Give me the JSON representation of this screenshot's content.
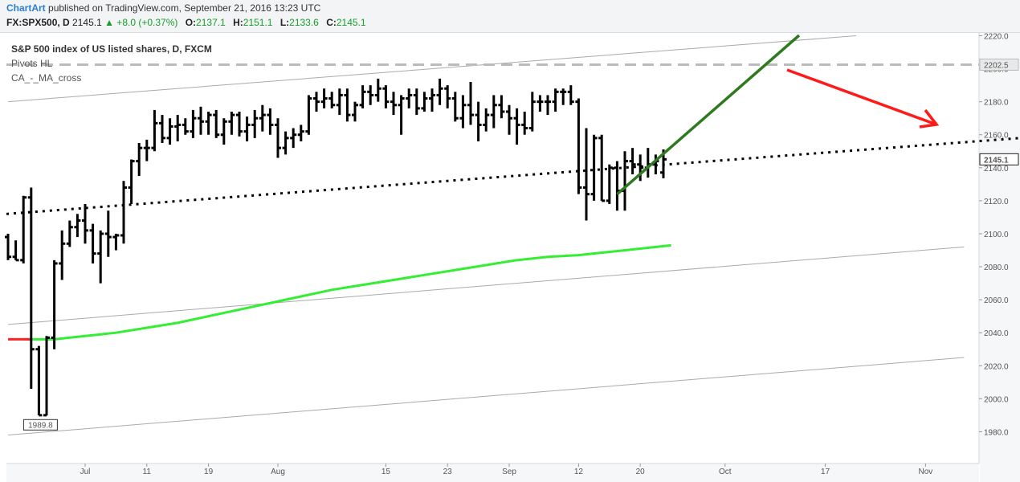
{
  "header": {
    "brand": "ChartArt",
    "published": "published on TradingView.com, September 21, 2016 13:23 UTC",
    "symbol": "FX:SPX500, D",
    "last": "2145.1",
    "change": "▲ +8.0 (+0.37%)",
    "o_label": "O:",
    "o_value": "2137.1",
    "h_label": "H:",
    "h_value": "2151.1",
    "l_label": "L:",
    "l_value": "2133.6",
    "c_label": "C:",
    "c_value": "2145.1"
  },
  "legend": {
    "title": "S&P 500 index of US listed shares, D, FXCM",
    "line2": "Pivots HL",
    "line3": "CA_-_MA_cross"
  },
  "chart_data": {
    "type": "ohlc",
    "price_axis": {
      "min": 1960,
      "max": 2220,
      "ticks": [
        1980,
        2000,
        2020,
        2040,
        2060,
        2080,
        2100,
        2120,
        2140,
        2160,
        2180,
        2200,
        2220
      ]
    },
    "x_labels": [
      {
        "label": "Jul",
        "index": 10
      },
      {
        "label": "11",
        "index": 18
      },
      {
        "label": "19",
        "index": 26
      },
      {
        "label": "Aug",
        "index": 35
      },
      {
        "label": "15",
        "index": 49
      },
      {
        "label": "23",
        "index": 57
      },
      {
        "label": "Sep",
        "index": 65
      },
      {
        "label": "12",
        "index": 74
      },
      {
        "label": "20",
        "index": 82
      },
      {
        "label": "Oct",
        "index": 93
      },
      {
        "label": "17",
        "index": 106
      },
      {
        "label": "Nov",
        "index": 119
      }
    ],
    "bars": [
      {
        "o": 2098,
        "h": 2100,
        "l": 2084,
        "c": 2086
      },
      {
        "o": 2086,
        "h": 2096,
        "l": 2084,
        "c": 2084
      },
      {
        "o": 2084,
        "h": 2123,
        "l": 2082,
        "c": 2122
      },
      {
        "o": 2122,
        "h": 2128,
        "l": 2006,
        "c": 2030
      },
      {
        "o": 2030,
        "h": 2032,
        "l": 1990,
        "c": 1990
      },
      {
        "o": 1990,
        "h": 2038,
        "l": 1989.8,
        "c": 2037
      },
      {
        "o": 2037,
        "h": 2084,
        "l": 2030,
        "c": 2082
      },
      {
        "o": 2082,
        "h": 2102,
        "l": 2072,
        "c": 2094
      },
      {
        "o": 2094,
        "h": 2108,
        "l": 2092,
        "c": 2104
      },
      {
        "o": 2104,
        "h": 2112,
        "l": 2098,
        "c": 2108
      },
      {
        "o": 2108,
        "h": 2118,
        "l": 2094,
        "c": 2102
      },
      {
        "o": 2102,
        "h": 2106,
        "l": 2082,
        "c": 2088
      },
      {
        "o": 2088,
        "h": 2102,
        "l": 2070,
        "c": 2100
      },
      {
        "o": 2100,
        "h": 2114,
        "l": 2086,
        "c": 2098
      },
      {
        "o": 2098,
        "h": 2100,
        "l": 2090,
        "c": 2099
      },
      {
        "o": 2099,
        "h": 2132,
        "l": 2094,
        "c": 2128
      },
      {
        "o": 2128,
        "h": 2145,
        "l": 2118,
        "c": 2144
      },
      {
        "o": 2144,
        "h": 2155,
        "l": 2135,
        "c": 2152
      },
      {
        "o": 2152,
        "h": 2157,
        "l": 2144,
        "c": 2152
      },
      {
        "o": 2152,
        "h": 2175,
        "l": 2150,
        "c": 2167
      },
      {
        "o": 2167,
        "h": 2172,
        "l": 2155,
        "c": 2158
      },
      {
        "o": 2158,
        "h": 2170,
        "l": 2154,
        "c": 2165
      },
      {
        "o": 2165,
        "h": 2172,
        "l": 2156,
        "c": 2166
      },
      {
        "o": 2166,
        "h": 2170,
        "l": 2160,
        "c": 2162
      },
      {
        "o": 2162,
        "h": 2175,
        "l": 2158,
        "c": 2170
      },
      {
        "o": 2170,
        "h": 2177,
        "l": 2160,
        "c": 2168
      },
      {
        "o": 2168,
        "h": 2174,
        "l": 2160,
        "c": 2172
      },
      {
        "o": 2172,
        "h": 2175,
        "l": 2158,
        "c": 2160
      },
      {
        "o": 2160,
        "h": 2170,
        "l": 2154,
        "c": 2168
      },
      {
        "o": 2168,
        "h": 2174,
        "l": 2160,
        "c": 2172
      },
      {
        "o": 2172,
        "h": 2174,
        "l": 2159,
        "c": 2162
      },
      {
        "o": 2162,
        "h": 2171,
        "l": 2156,
        "c": 2166
      },
      {
        "o": 2166,
        "h": 2175,
        "l": 2158,
        "c": 2170
      },
      {
        "o": 2170,
        "h": 2178,
        "l": 2162,
        "c": 2172
      },
      {
        "o": 2172,
        "h": 2176,
        "l": 2160,
        "c": 2166
      },
      {
        "o": 2166,
        "h": 2170,
        "l": 2146,
        "c": 2152
      },
      {
        "o": 2152,
        "h": 2162,
        "l": 2148,
        "c": 2158
      },
      {
        "o": 2158,
        "h": 2164,
        "l": 2152,
        "c": 2160
      },
      {
        "o": 2160,
        "h": 2166,
        "l": 2156,
        "c": 2162
      },
      {
        "o": 2162,
        "h": 2184,
        "l": 2160,
        "c": 2182
      },
      {
        "o": 2182,
        "h": 2186,
        "l": 2174,
        "c": 2180
      },
      {
        "o": 2180,
        "h": 2188,
        "l": 2176,
        "c": 2182
      },
      {
        "o": 2182,
        "h": 2186,
        "l": 2176,
        "c": 2178
      },
      {
        "o": 2178,
        "h": 2188,
        "l": 2172,
        "c": 2184
      },
      {
        "o": 2184,
        "h": 2188,
        "l": 2168,
        "c": 2172
      },
      {
        "o": 2172,
        "h": 2180,
        "l": 2168,
        "c": 2178
      },
      {
        "o": 2178,
        "h": 2190,
        "l": 2176,
        "c": 2186
      },
      {
        "o": 2186,
        "h": 2190,
        "l": 2178,
        "c": 2184
      },
      {
        "o": 2184,
        "h": 2194,
        "l": 2180,
        "c": 2188
      },
      {
        "o": 2188,
        "h": 2190,
        "l": 2176,
        "c": 2180
      },
      {
        "o": 2180,
        "h": 2186,
        "l": 2172,
        "c": 2178
      },
      {
        "o": 2178,
        "h": 2184,
        "l": 2160,
        "c": 2182
      },
      {
        "o": 2182,
        "h": 2188,
        "l": 2176,
        "c": 2184
      },
      {
        "o": 2184,
        "h": 2188,
        "l": 2172,
        "c": 2176
      },
      {
        "o": 2176,
        "h": 2186,
        "l": 2174,
        "c": 2182
      },
      {
        "o": 2182,
        "h": 2188,
        "l": 2174,
        "c": 2184
      },
      {
        "o": 2184,
        "h": 2194,
        "l": 2178,
        "c": 2188
      },
      {
        "o": 2188,
        "h": 2190,
        "l": 2176,
        "c": 2182
      },
      {
        "o": 2182,
        "h": 2186,
        "l": 2168,
        "c": 2170
      },
      {
        "o": 2170,
        "h": 2184,
        "l": 2164,
        "c": 2178
      },
      {
        "o": 2178,
        "h": 2192,
        "l": 2166,
        "c": 2172
      },
      {
        "o": 2172,
        "h": 2180,
        "l": 2156,
        "c": 2166
      },
      {
        "o": 2166,
        "h": 2176,
        "l": 2162,
        "c": 2172
      },
      {
        "o": 2172,
        "h": 2184,
        "l": 2164,
        "c": 2178
      },
      {
        "o": 2178,
        "h": 2184,
        "l": 2170,
        "c": 2174
      },
      {
        "o": 2174,
        "h": 2178,
        "l": 2160,
        "c": 2170
      },
      {
        "o": 2170,
        "h": 2176,
        "l": 2154,
        "c": 2166
      },
      {
        "o": 2166,
        "h": 2174,
        "l": 2160,
        "c": 2164
      },
      {
        "o": 2164,
        "h": 2186,
        "l": 2162,
        "c": 2180
      },
      {
        "o": 2180,
        "h": 2184,
        "l": 2174,
        "c": 2180
      },
      {
        "o": 2180,
        "h": 2184,
        "l": 2172,
        "c": 2180
      },
      {
        "o": 2180,
        "h": 2188,
        "l": 2174,
        "c": 2186
      },
      {
        "o": 2186,
        "h": 2188,
        "l": 2178,
        "c": 2186
      },
      {
        "o": 2186,
        "h": 2190,
        "l": 2178,
        "c": 2180
      },
      {
        "o": 2180,
        "h": 2182,
        "l": 2124,
        "c": 2128
      },
      {
        "o": 2128,
        "h": 2164,
        "l": 2108,
        "c": 2124
      },
      {
        "o": 2124,
        "h": 2160,
        "l": 2120,
        "c": 2158
      },
      {
        "o": 2158,
        "h": 2160,
        "l": 2120,
        "c": 2120
      },
      {
        "o": 2120,
        "h": 2142,
        "l": 2118,
        "c": 2140
      },
      {
        "o": 2140,
        "h": 2144,
        "l": 2114,
        "c": 2126
      },
      {
        "o": 2126,
        "h": 2150,
        "l": 2114,
        "c": 2144
      },
      {
        "o": 2144,
        "h": 2152,
        "l": 2136,
        "c": 2142
      },
      {
        "o": 2142,
        "h": 2148,
        "l": 2132,
        "c": 2140
      },
      {
        "o": 2140,
        "h": 2152,
        "l": 2134,
        "c": 2142
      },
      {
        "o": 2142,
        "h": 2148,
        "l": 2136,
        "c": 2144
      },
      {
        "o": 2137.1,
        "h": 2151.1,
        "l": 2133.6,
        "c": 2145.1
      }
    ],
    "ma": [
      [
        2,
        2036
      ],
      [
        6,
        2036
      ],
      [
        10,
        2038
      ],
      [
        14,
        2040
      ],
      [
        18,
        2043
      ],
      [
        22,
        2046
      ],
      [
        26,
        2050
      ],
      [
        30,
        2054
      ],
      [
        34,
        2058
      ],
      [
        38,
        2062
      ],
      [
        42,
        2066
      ],
      [
        46,
        2069
      ],
      [
        50,
        2072
      ],
      [
        54,
        2075
      ],
      [
        58,
        2078
      ],
      [
        62,
        2081
      ],
      [
        66,
        2084
      ],
      [
        70,
        2086
      ],
      [
        74,
        2087
      ],
      [
        78,
        2089
      ],
      [
        82,
        2091
      ],
      [
        86,
        2093
      ]
    ],
    "ma_red": [
      [
        0,
        2036
      ],
      [
        3,
        2036
      ]
    ],
    "price_labels": [
      {
        "text": "2202.5",
        "value": 2202.5
      },
      {
        "text": "2145.1",
        "value": 2145.1
      }
    ],
    "low_label": {
      "text": "1989.8",
      "index": 4,
      "value": 1989.8
    },
    "colors": {
      "bars": "#000000",
      "ma": "#33ee33",
      "ma_red": "#ff2222",
      "green_arrow": "#2f7a1f",
      "red_arrow": "#ff1a1a",
      "channel": "#aaaaaa",
      "dashed": "#bbbbbb",
      "dotted": "#000000"
    }
  }
}
